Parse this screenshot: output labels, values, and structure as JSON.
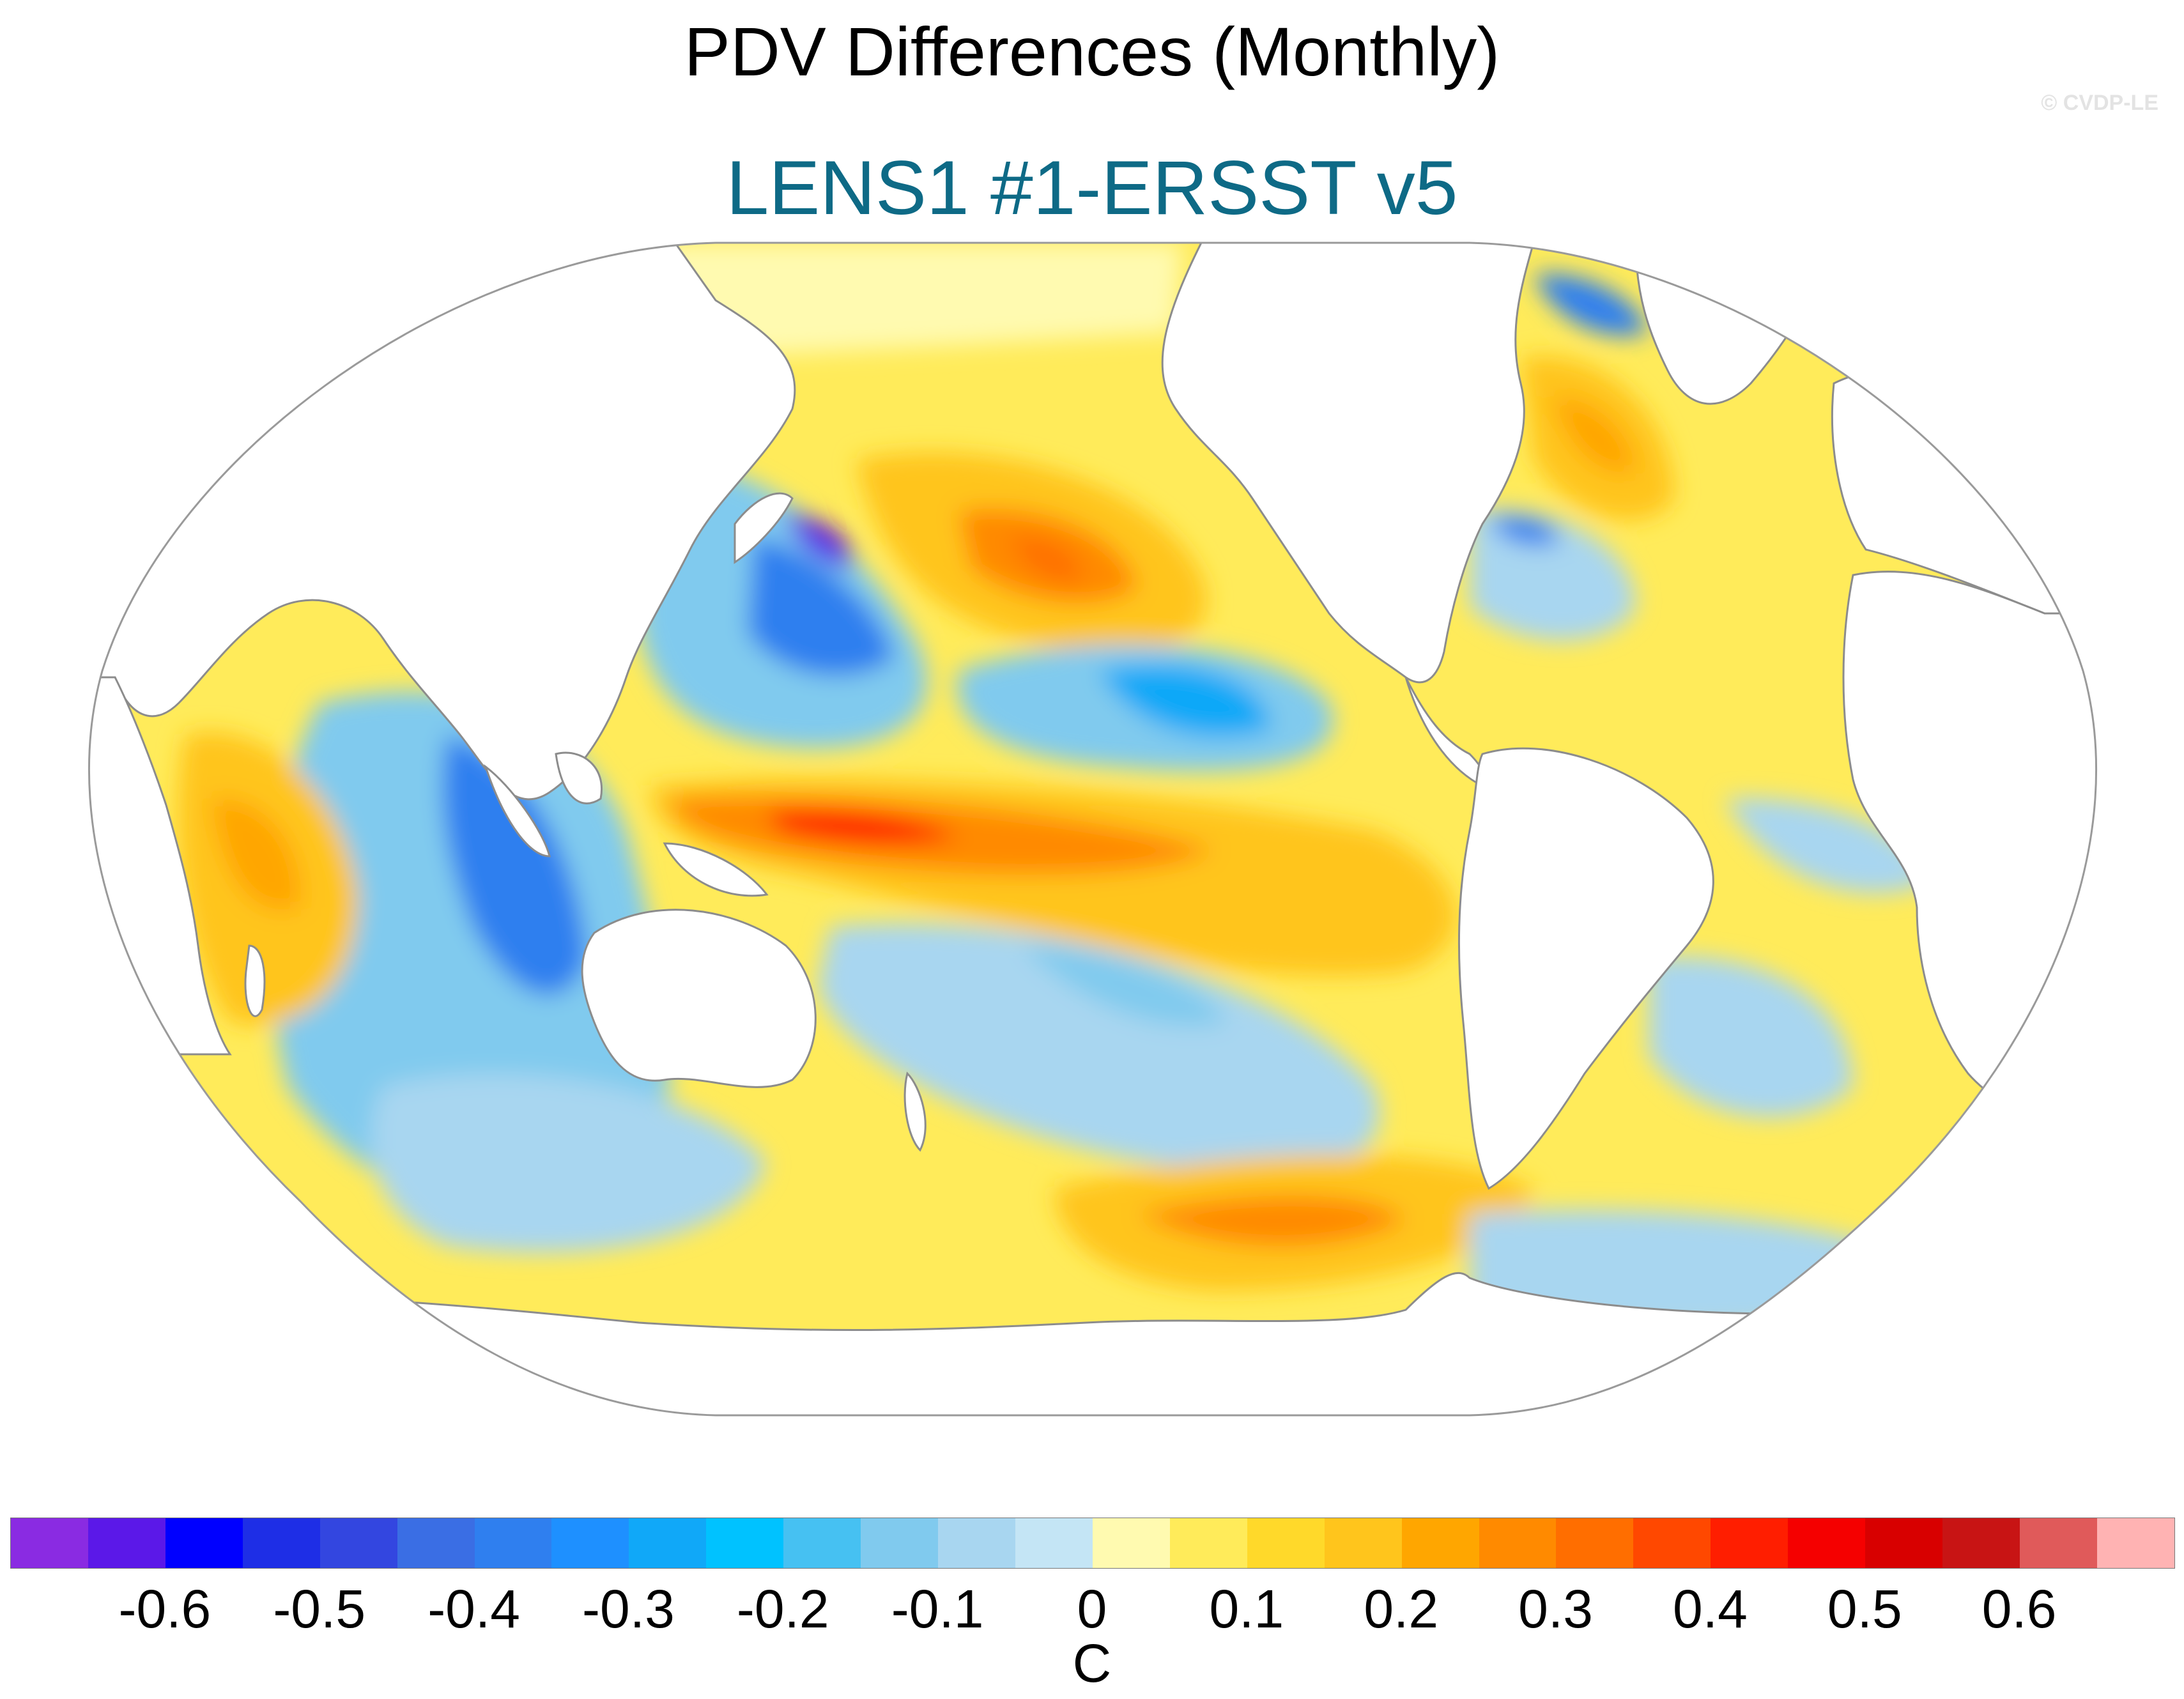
{
  "title": "PDV Differences (Monthly)",
  "subtitle": "LENS1 #1-ERSST v5",
  "credit": "© CVDP-LE",
  "colorbar": {
    "unit": "C",
    "colors": [
      "#8a2be2",
      "#5b18e8",
      "#0000ff",
      "#1e2ee6",
      "#3346e0",
      "#3a6ee4",
      "#2f7fef",
      "#1e90ff",
      "#10a8f8",
      "#00c2ff",
      "#46c1f2",
      "#80caee",
      "#a8d6f0",
      "#c4e5f5",
      "#fffab0",
      "#ffeb5a",
      "#ffd92a",
      "#ffc51c",
      "#ffa600",
      "#ff8a00",
      "#ff6e00",
      "#ff4800",
      "#ff1e00",
      "#f50000",
      "#d80000",
      "#c81414",
      "#e05a5a",
      "#ffb3b3"
    ],
    "tick_labels": [
      "-0.6",
      "-0.5",
      "-0.4",
      "-0.3",
      "-0.2",
      "-0.1",
      "0",
      "0.1",
      "0.2",
      "0.3",
      "0.4",
      "0.5",
      "0.6"
    ],
    "tick_values": [
      -0.6,
      -0.5,
      -0.4,
      -0.3,
      -0.2,
      -0.1,
      0,
      0.1,
      0.2,
      0.3,
      0.4,
      0.5,
      0.6
    ],
    "min": -0.7,
    "max": 0.7
  },
  "colors": {
    "ocean_bg": "#c4e5f5",
    "land": "#ffffff",
    "coast": "#8c8c8c",
    "title": "#000000",
    "subtitle": "#0e6a86",
    "credit": "#e3e3e3"
  }
}
